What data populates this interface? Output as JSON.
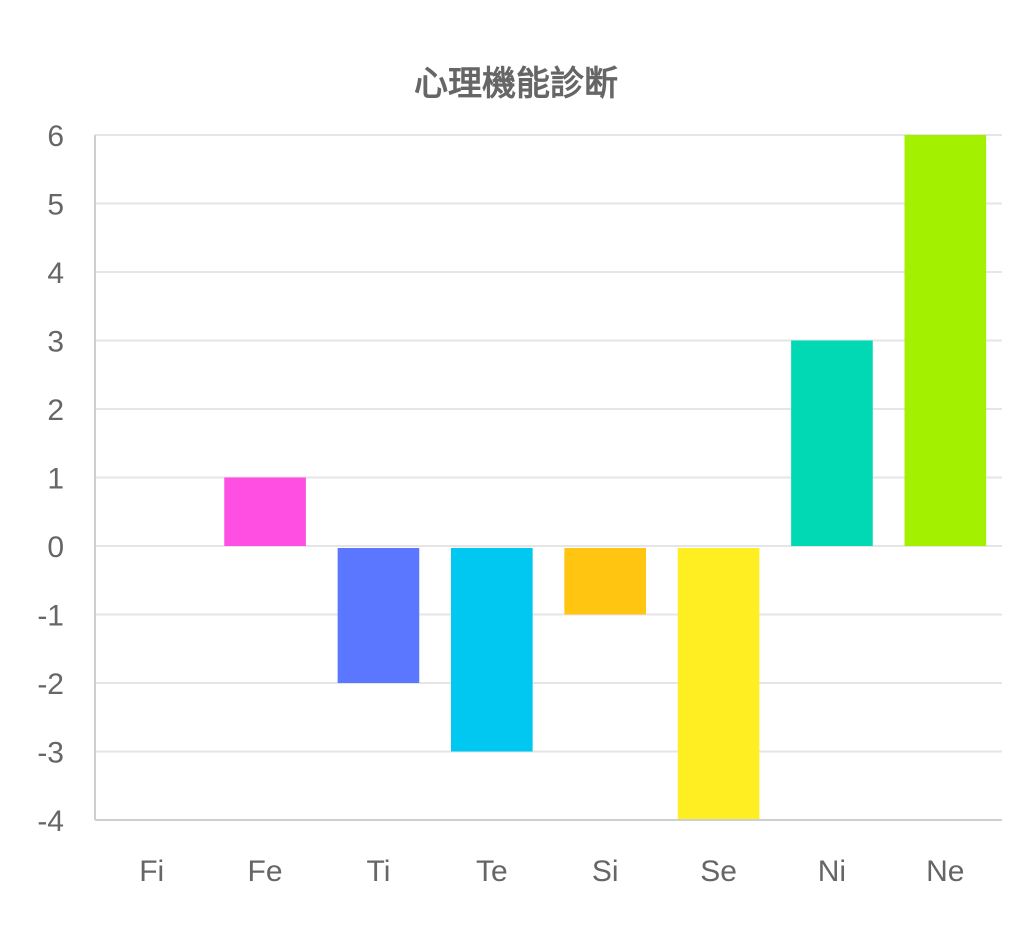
{
  "chart_data": {
    "type": "bar",
    "title": "心理機能診断",
    "xlabel": "",
    "ylabel": "",
    "categories": [
      "Fi",
      "Fe",
      "Ti",
      "Te",
      "Si",
      "Se",
      "Ni",
      "Ne"
    ],
    "values": [
      0,
      1,
      -2,
      -3,
      -1,
      -4,
      3,
      6
    ],
    "colors": [
      "#ff4fe3",
      "#ff4fe3",
      "#5b77ff",
      "#00c8f0",
      "#ffc510",
      "#ffee22",
      "#00d9b4",
      "#a3f000"
    ],
    "ylim": [
      -4,
      6
    ],
    "yticks": [
      6,
      5,
      4,
      3,
      2,
      1,
      0,
      -1,
      -2,
      -3,
      -4
    ],
    "grid": true,
    "legend": "none"
  }
}
